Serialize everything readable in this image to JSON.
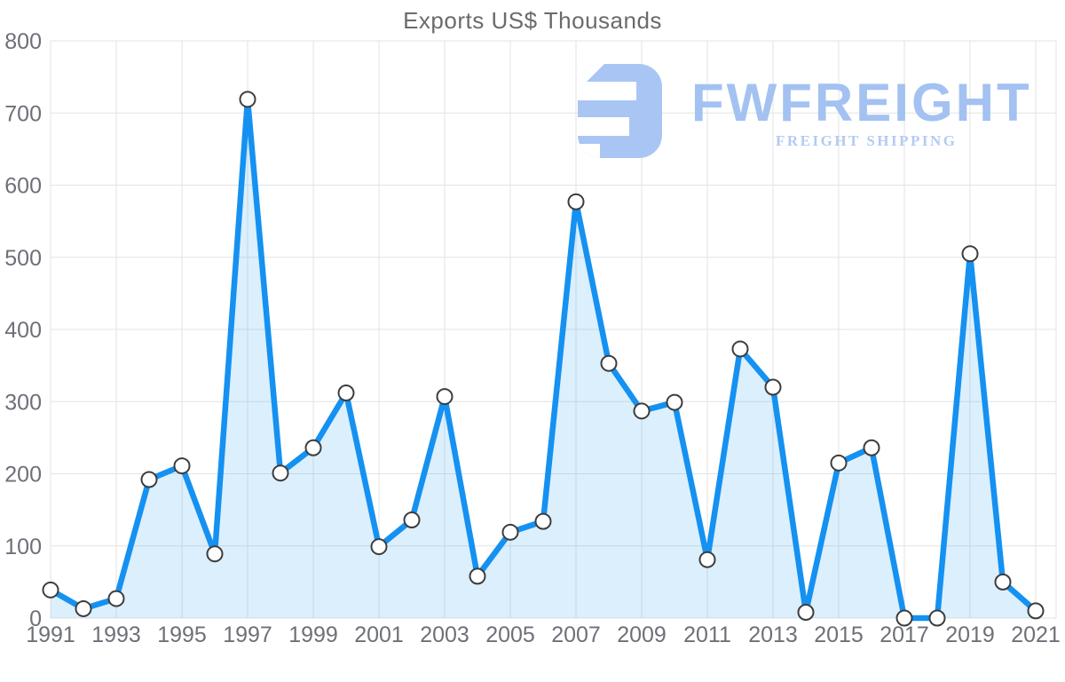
{
  "title": "Exports US$ Thousands",
  "branding": {
    "name": "FWFREIGHT",
    "tagline": "FREIGHT SHIPPING",
    "color": "#a3c2f1"
  },
  "chart_data": {
    "type": "area",
    "title": "Exports US$ Thousands",
    "series_name": "Exports US$ Thousands",
    "categories": [
      1991,
      1992,
      1993,
      1994,
      1995,
      1996,
      1997,
      1998,
      1999,
      2000,
      2001,
      2002,
      2003,
      2004,
      2005,
      2006,
      2007,
      2008,
      2009,
      2010,
      2011,
      2012,
      2013,
      2014,
      2015,
      2016,
      2017,
      2018,
      2019,
      2020,
      2021
    ],
    "values": [
      39,
      13,
      27,
      192,
      211,
      89,
      719,
      201,
      236,
      312,
      99,
      136,
      307,
      58,
      119,
      134,
      577,
      353,
      287,
      299,
      81,
      373,
      320,
      8,
      215,
      236,
      0,
      0,
      505,
      50,
      10
    ],
    "ylim": [
      0,
      800
    ],
    "ytick_step": 100,
    "xtick_every": 2,
    "grid": true,
    "legend_position": "none",
    "line_color": "#1591f1",
    "fill_color": "rgba(21,145,241,0.15)",
    "marker_fill": "#ffffff",
    "marker_stroke": "#3d3d3d",
    "grid_color": "#e3e3e3",
    "axis_label_color": "#6e7079"
  }
}
